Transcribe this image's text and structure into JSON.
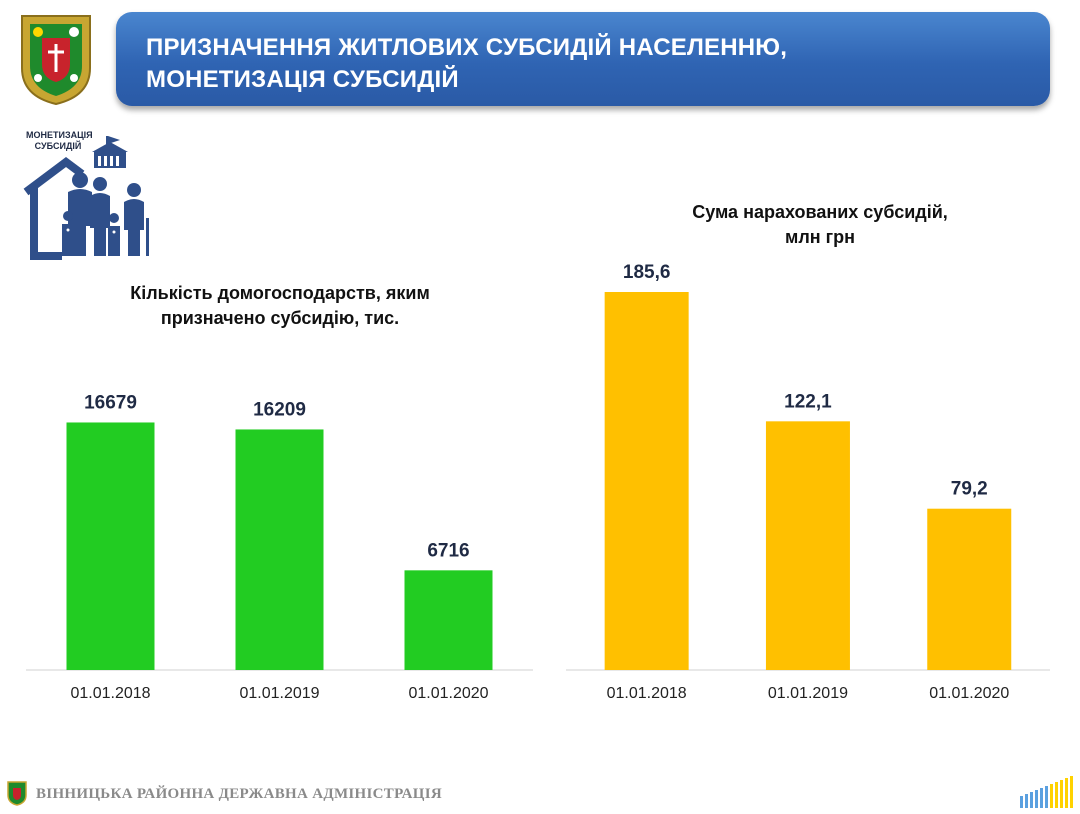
{
  "header": {
    "title_line1": "ПРИЗНАЧЕННЯ ЖИТЛОВИХ СУБСИДІЙ НАСЕЛЕННЮ,",
    "title_line2": "МОНЕТИЗАЦІЯ СУБСИДІЙ"
  },
  "illustration": {
    "label_line1": "МОНЕТИЗАЦІЯ",
    "label_line2": "СУБСИДІЙ",
    "icon": "family-house-icon"
  },
  "footer": {
    "organization": "ВІННИЦЬКА РАЙОННА ДЕРЖАВНА АДМІНІСТРАЦІЯ"
  },
  "colors": {
    "banner": "#2f64b3",
    "green_bar": "#22cc22",
    "yellow_bar": "#ffc000"
  },
  "chart_data": [
    {
      "type": "bar",
      "title": "Кількість домогосподарств, яким призначено субсидію, тис.",
      "title_line1": "Кількість домогосподарств, яким",
      "title_line2": "призначено субсидію, тис.",
      "categories": [
        "01.01.2018",
        "01.01.2019",
        "01.01.2020"
      ],
      "values": [
        16679,
        16209,
        6716
      ],
      "labels": [
        "16679",
        "16209",
        "6716"
      ],
      "color": "#22cc22",
      "ylim": [
        0,
        18800
      ],
      "grid": false
    },
    {
      "type": "bar",
      "title": "Сума нарахованих субсидій, млн грн",
      "title_line1": "Сума нарахованих субсидій,",
      "title_line2": "млн грн",
      "categories": [
        "01.01.2018",
        "01.01.2019",
        "01.01.2020"
      ],
      "values": [
        185.6,
        122.1,
        79.2
      ],
      "labels": [
        "185,6",
        "122,1",
        "79,2"
      ],
      "color": "#ffc000",
      "ylim": [
        0,
        185.6
      ],
      "grid": false
    }
  ]
}
